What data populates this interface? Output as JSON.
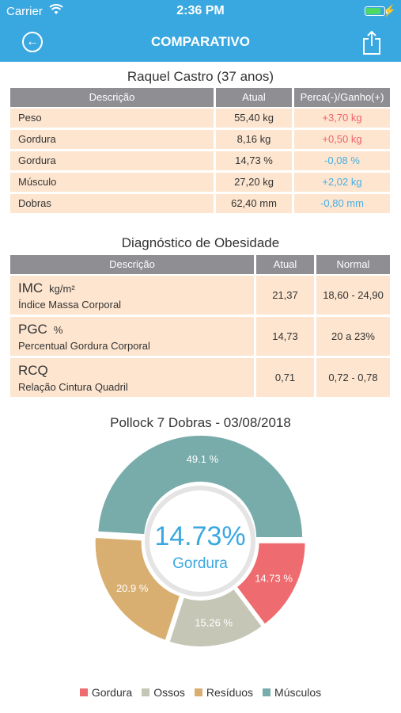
{
  "status": {
    "carrier": "Carrier",
    "time": "2:36 PM"
  },
  "nav": {
    "title": "COMPARATIVO"
  },
  "comparison": {
    "title": "Raquel Castro  (37 anos)",
    "headers": [
      "Descrição",
      "Atual",
      "Perca(-)/Ganho(+)"
    ],
    "rows": [
      {
        "desc": "Peso",
        "atual": "55,40 kg",
        "diff": "+3,70 kg",
        "diff_color": "#f0616b"
      },
      {
        "desc": "Gordura",
        "atual": "8,16 kg",
        "diff": "+0,50 kg",
        "diff_color": "#f0616b"
      },
      {
        "desc": "Gordura",
        "atual": "14,73 %",
        "diff": "-0,08 %",
        "diff_color": "#45b0e5"
      },
      {
        "desc": "Músculo",
        "atual": "27,20 kg",
        "diff": "+2,02 kg",
        "diff_color": "#45b0e5"
      },
      {
        "desc": "Dobras",
        "atual": "62,40 mm",
        "diff": "-0,80 mm",
        "diff_color": "#45b0e5"
      }
    ]
  },
  "diagnosis": {
    "title": "Diagnóstico de Obesidade",
    "headers": [
      "Descrição",
      "Atual",
      "Normal"
    ],
    "rows": [
      {
        "label": "IMC",
        "unit": "kg/m²",
        "sub": "Índice Massa Corporal",
        "atual": "21,37",
        "normal": "18,60 - 24,90"
      },
      {
        "label": "PGC",
        "unit": "%",
        "sub": "Percentual Gordura Corporal",
        "atual": "14,73",
        "normal": "20 a 23%"
      },
      {
        "label": "RCQ",
        "unit": "",
        "sub": "Relação Cintura Quadril",
        "atual": "0,71",
        "normal": "0,72 - 0,78"
      }
    ]
  },
  "chart_data": {
    "type": "pie",
    "title": "Pollock 7 Dobras - 03/08/2018",
    "center_value": "14.73%",
    "center_label": "Gordura",
    "categories": [
      "Gordura",
      "Ossos",
      "Resíduos",
      "Músculos"
    ],
    "values": [
      14.73,
      15.26,
      20.9,
      49.1
    ],
    "labels": [
      "14.73 %",
      "15.26 %",
      "20.9 %",
      "49.1 %"
    ],
    "colors": [
      "#ee6b6f",
      "#c5c6b6",
      "#d9af71",
      "#78acab"
    ]
  }
}
